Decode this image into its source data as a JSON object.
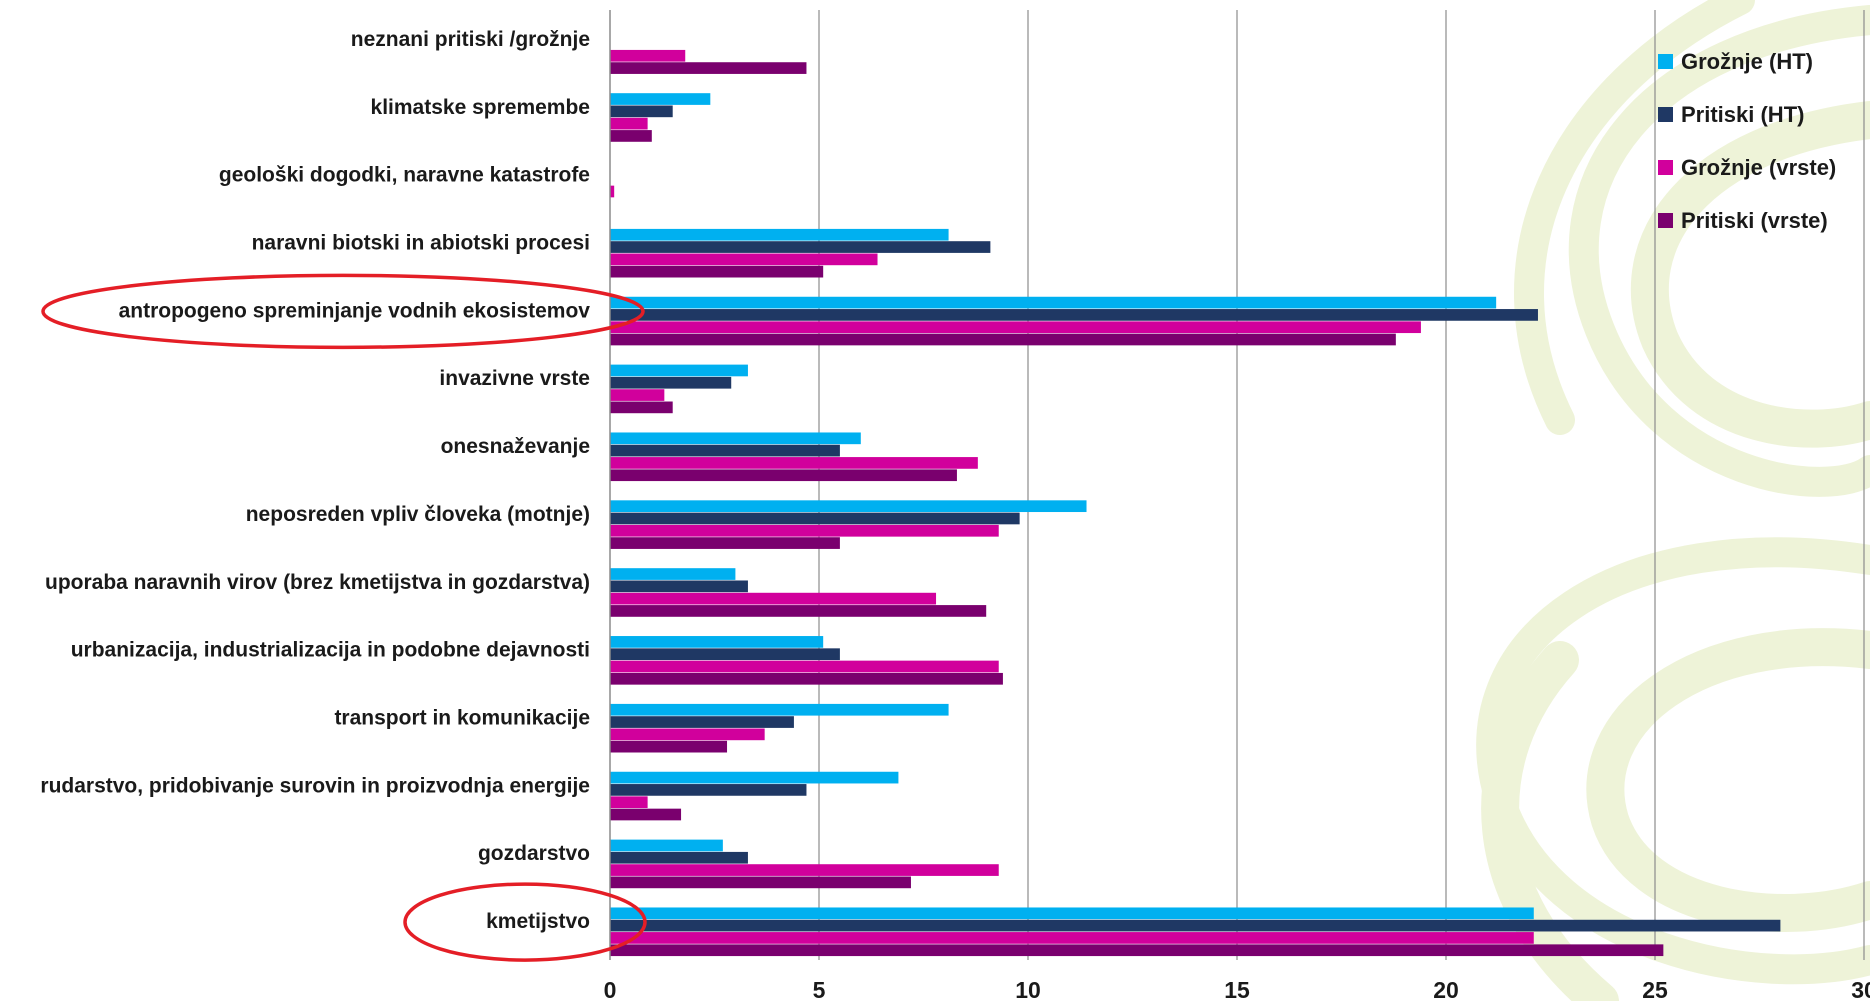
{
  "chart_data": {
    "type": "bar",
    "orientation": "horizontal",
    "categories": [
      "neznani pritiski /grožnje",
      "klimatske spremembe",
      "geološki dogodki, naravne katastrofe",
      "naravni biotski in abiotski procesi",
      "antropogeno spreminjanje vodnih ekosistemov",
      "invazivne vrste",
      "onesnaževanje",
      "neposreden vpliv človeka (motnje)",
      "uporaba naravnih virov (brez kmetijstva in gozdarstva)",
      "urbanizacija, industrializacija in podobne dejavnosti",
      "transport in komunikacije",
      "rudarstvo, pridobivanje surovin in proizvodnja energije",
      "gozdarstvo",
      "kmetijstvo"
    ],
    "series": [
      {
        "name": "Grožnje (HT)",
        "color": "#00b0f0",
        "values": [
          0,
          2.4,
          0,
          8.1,
          21.2,
          3.3,
          6.0,
          11.4,
          3.0,
          5.1,
          8.1,
          6.9,
          2.7,
          22.1
        ]
      },
      {
        "name": "Pritiski (HT)",
        "color": "#1f3864",
        "values": [
          0,
          1.5,
          0,
          9.1,
          22.2,
          2.9,
          5.5,
          9.8,
          3.3,
          5.5,
          4.4,
          4.7,
          3.3,
          28.0
        ]
      },
      {
        "name": "Grožnje (vrste)",
        "color": "#d1009c",
        "values": [
          1.8,
          0.9,
          0.1,
          6.4,
          19.4,
          1.3,
          8.8,
          9.3,
          7.8,
          9.3,
          3.7,
          0.9,
          9.3,
          22.1
        ]
      },
      {
        "name": "Pritiski (vrste)",
        "color": "#7a006e",
        "values": [
          4.7,
          1.0,
          0,
          5.1,
          18.8,
          1.5,
          8.3,
          5.5,
          9.0,
          9.4,
          2.8,
          1.7,
          7.2,
          25.2
        ]
      }
    ],
    "xlim": [
      0,
      30
    ],
    "xticks": [
      0,
      5,
      10,
      15,
      20,
      25,
      30
    ],
    "grid": "vertical",
    "legend": "right",
    "highlighted_categories": [
      "antropogeno spreminjanje vodnih ekosistemov",
      "kmetijstvo"
    ],
    "highlight_color": "#e41e26",
    "title": "",
    "xlabel": "",
    "ylabel": ""
  }
}
